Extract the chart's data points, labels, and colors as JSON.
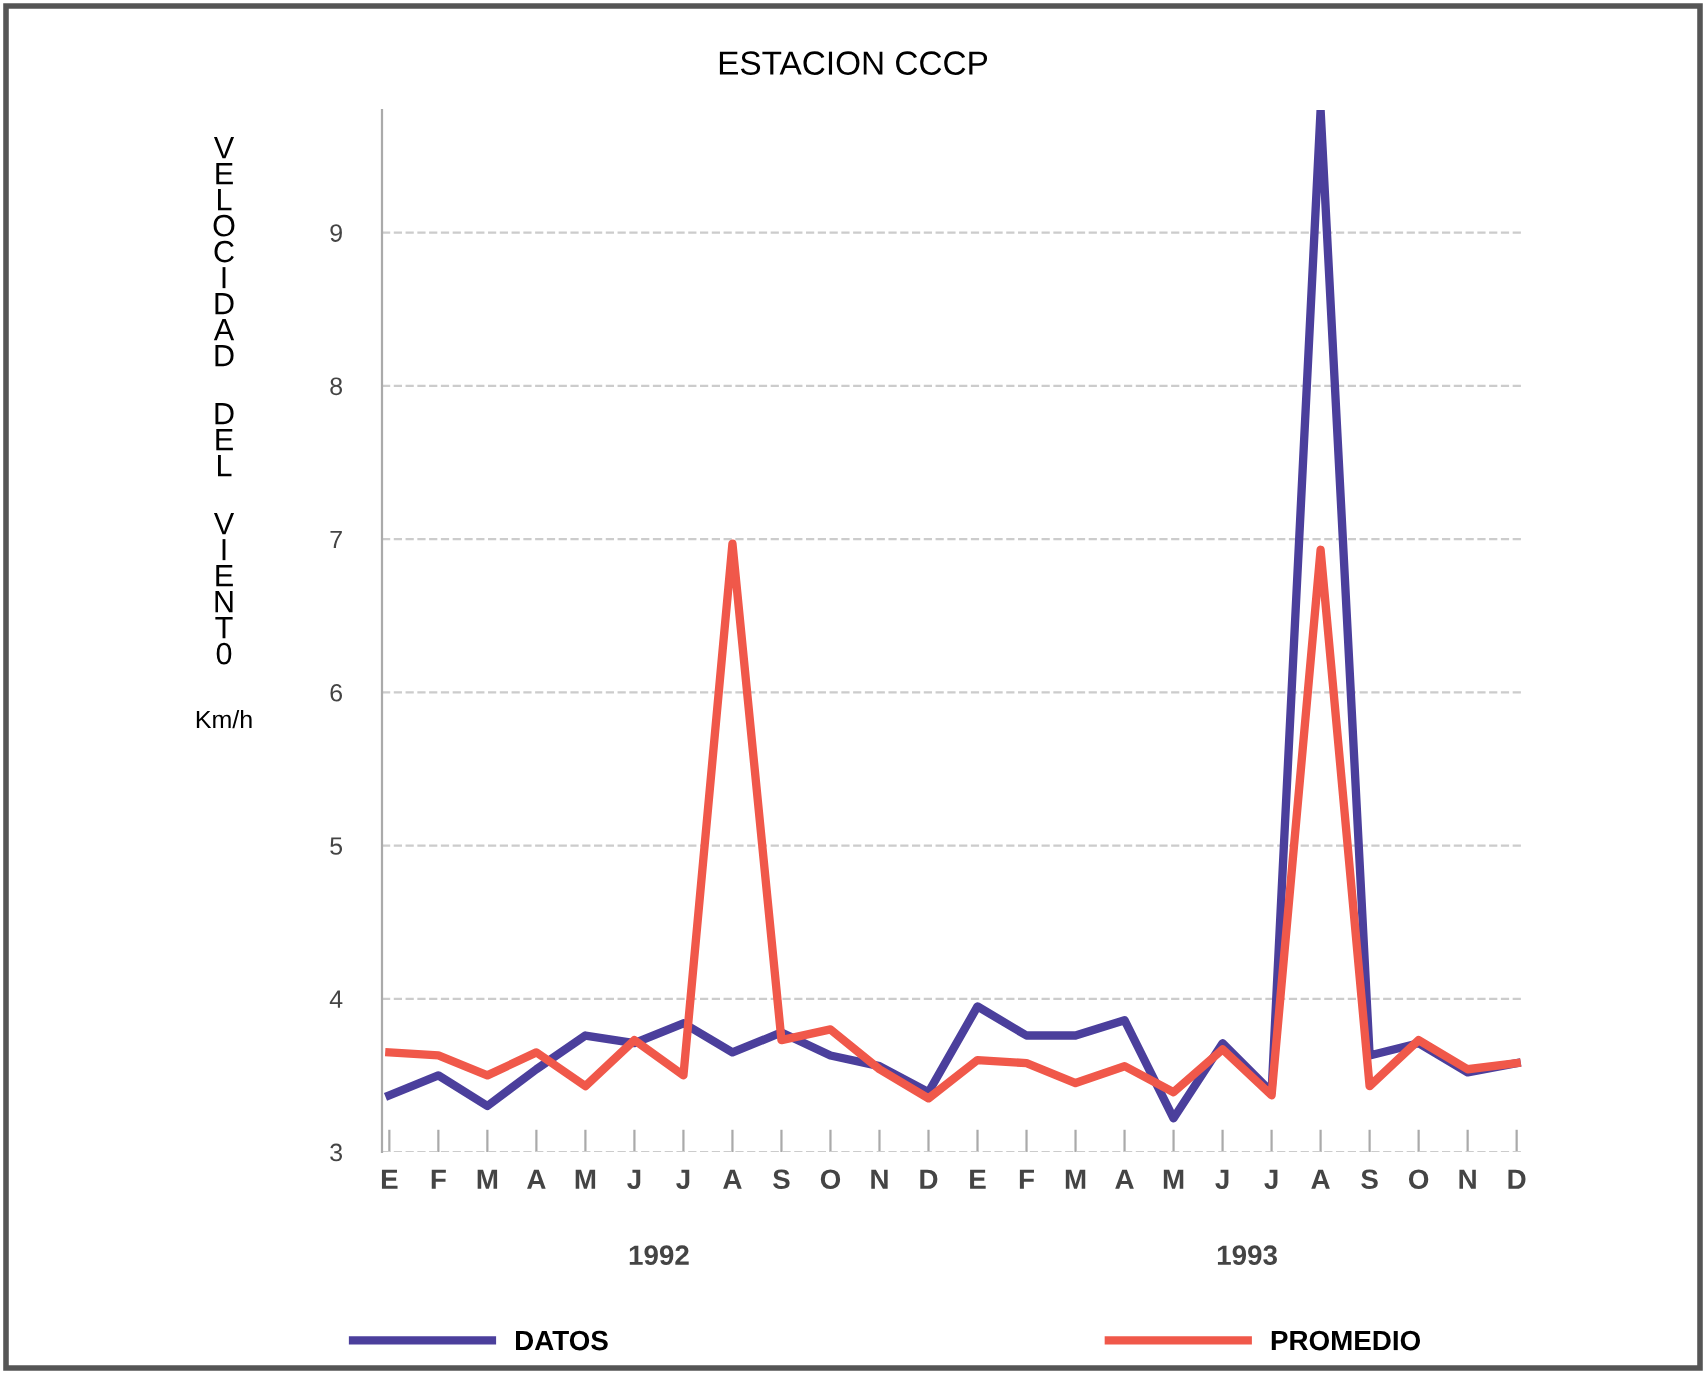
{
  "chart_data": {
    "type": "line",
    "title": "ESTACION CCCP",
    "ylabel": "VELOCIDAD DEL VIENT0 Km/h",
    "categories": [
      "E",
      "F",
      "M",
      "A",
      "M",
      "J",
      "J",
      "A",
      "S",
      "O",
      "N",
      "D",
      "E",
      "F",
      "M",
      "A",
      "M",
      "J",
      "J",
      "A",
      "S",
      "O",
      "N",
      "D"
    ],
    "series": [
      {
        "name": "DATOS",
        "color": "#4b3f9c",
        "values": [
          3.37,
          3.5,
          3.3,
          3.54,
          3.76,
          3.71,
          3.84,
          3.65,
          3.78,
          3.63,
          3.56,
          3.39,
          3.95,
          3.76,
          3.76,
          3.86,
          3.22,
          3.71,
          3.39,
          9.8,
          3.63,
          3.71,
          3.52,
          3.58
        ]
      },
      {
        "name": "PROMEDIO",
        "color": "#f0584a",
        "values": [
          3.65,
          3.63,
          3.5,
          3.65,
          3.43,
          3.73,
          3.5,
          6.97,
          3.73,
          3.8,
          3.54,
          3.35,
          3.6,
          3.58,
          3.45,
          3.56,
          3.39,
          3.67,
          3.37,
          6.93,
          3.43,
          3.73,
          3.54,
          3.58
        ]
      }
    ],
    "annotations": [
      "1992",
      "1993"
    ],
    "ylim": [
      3,
      9.8
    ],
    "yticks": [
      3,
      4,
      5,
      6,
      7,
      8,
      9
    ],
    "grid": "y",
    "legend": "bottom",
    "marker": "none",
    "line_style": "solid"
  }
}
